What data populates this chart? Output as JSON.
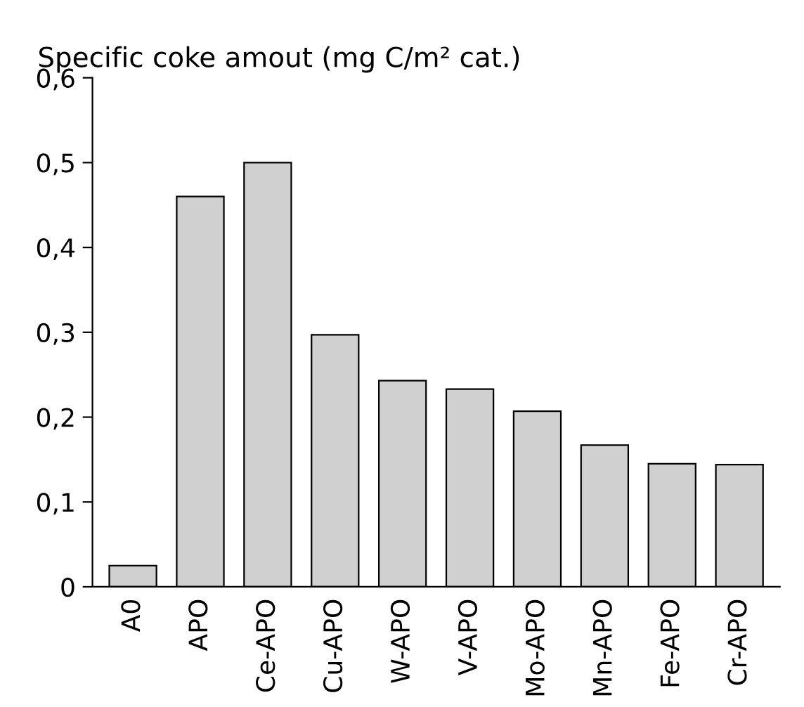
{
  "chart_data": {
    "type": "bar",
    "ylabel": "Specific coke amout (mg C/m² cat.)",
    "categories": [
      "A0",
      "APO",
      "Ce-APO",
      "Cu-APO",
      "W-APO",
      "V-APO",
      "Mo-APO",
      "Mn-APO",
      "Fe-APO",
      "Cr-APO"
    ],
    "values": [
      0.025,
      0.46,
      0.5,
      0.297,
      0.243,
      0.233,
      0.207,
      0.167,
      0.145,
      0.144
    ],
    "color": "#d0d0d0",
    "ylim": [
      0,
      0.6
    ],
    "yticks": [
      {
        "value": 0,
        "label": "0"
      },
      {
        "value": 0.1,
        "label": "0,1"
      },
      {
        "value": 0.2,
        "label": "0,2"
      },
      {
        "value": 0.3,
        "label": "0,3"
      },
      {
        "value": 0.4,
        "label": "0,4"
      },
      {
        "value": 0.5,
        "label": "0,5"
      },
      {
        "value": 0.6,
        "label": "0,6"
      }
    ],
    "grid": false
  }
}
